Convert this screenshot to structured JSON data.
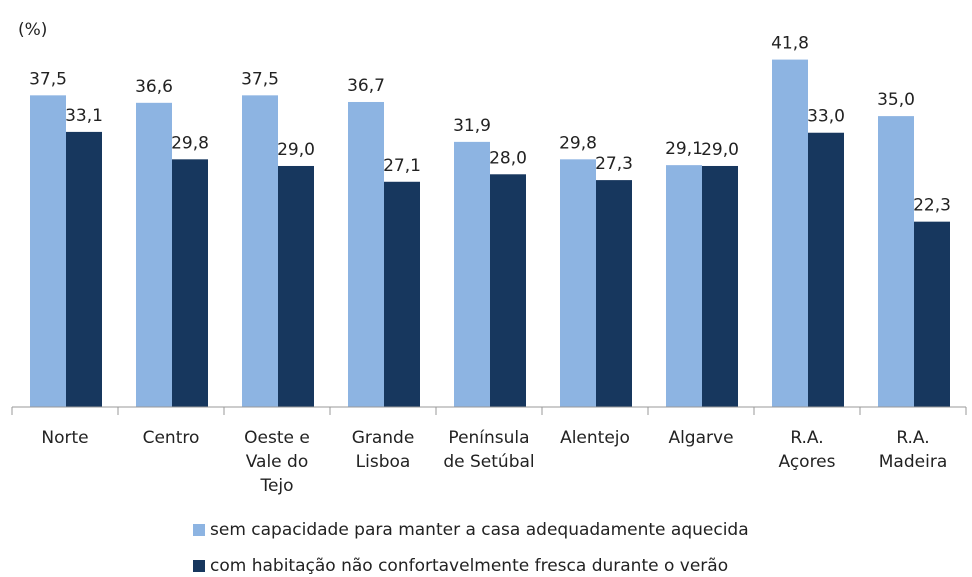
{
  "chart_data": {
    "type": "bar",
    "y_label": "(%)",
    "categories": [
      "Norte",
      "Centro",
      "Oeste e\nVale do\nTejo",
      "Grande\nLisboa",
      "Península\nde Setúbal",
      "Alentejo",
      "Algarve",
      "R.A.\nAçores",
      "R.A.\nMadeira"
    ],
    "series": [
      {
        "name": "sem capacidade para manter a casa adequadamente aquecida",
        "color": "#8db4e2",
        "values": [
          37.5,
          36.6,
          37.5,
          36.7,
          31.9,
          29.8,
          29.1,
          41.8,
          35.0
        ],
        "value_labels": [
          "37,5",
          "36,6",
          "37,5",
          "36,7",
          "31,9",
          "29,8",
          "29,1",
          "41,8",
          "35,0"
        ]
      },
      {
        "name": "com habitação não confortavelmente fresca durante o verão",
        "color": "#17375e",
        "values": [
          33.1,
          29.8,
          29.0,
          27.1,
          28.0,
          27.3,
          29.0,
          33.0,
          22.3
        ],
        "value_labels": [
          "33,1",
          "29,8",
          "29,0",
          "27,1",
          "28,0",
          "27,3",
          "29,0",
          "33,0",
          "22,3"
        ]
      }
    ],
    "ylim": [
      0,
      45
    ]
  }
}
